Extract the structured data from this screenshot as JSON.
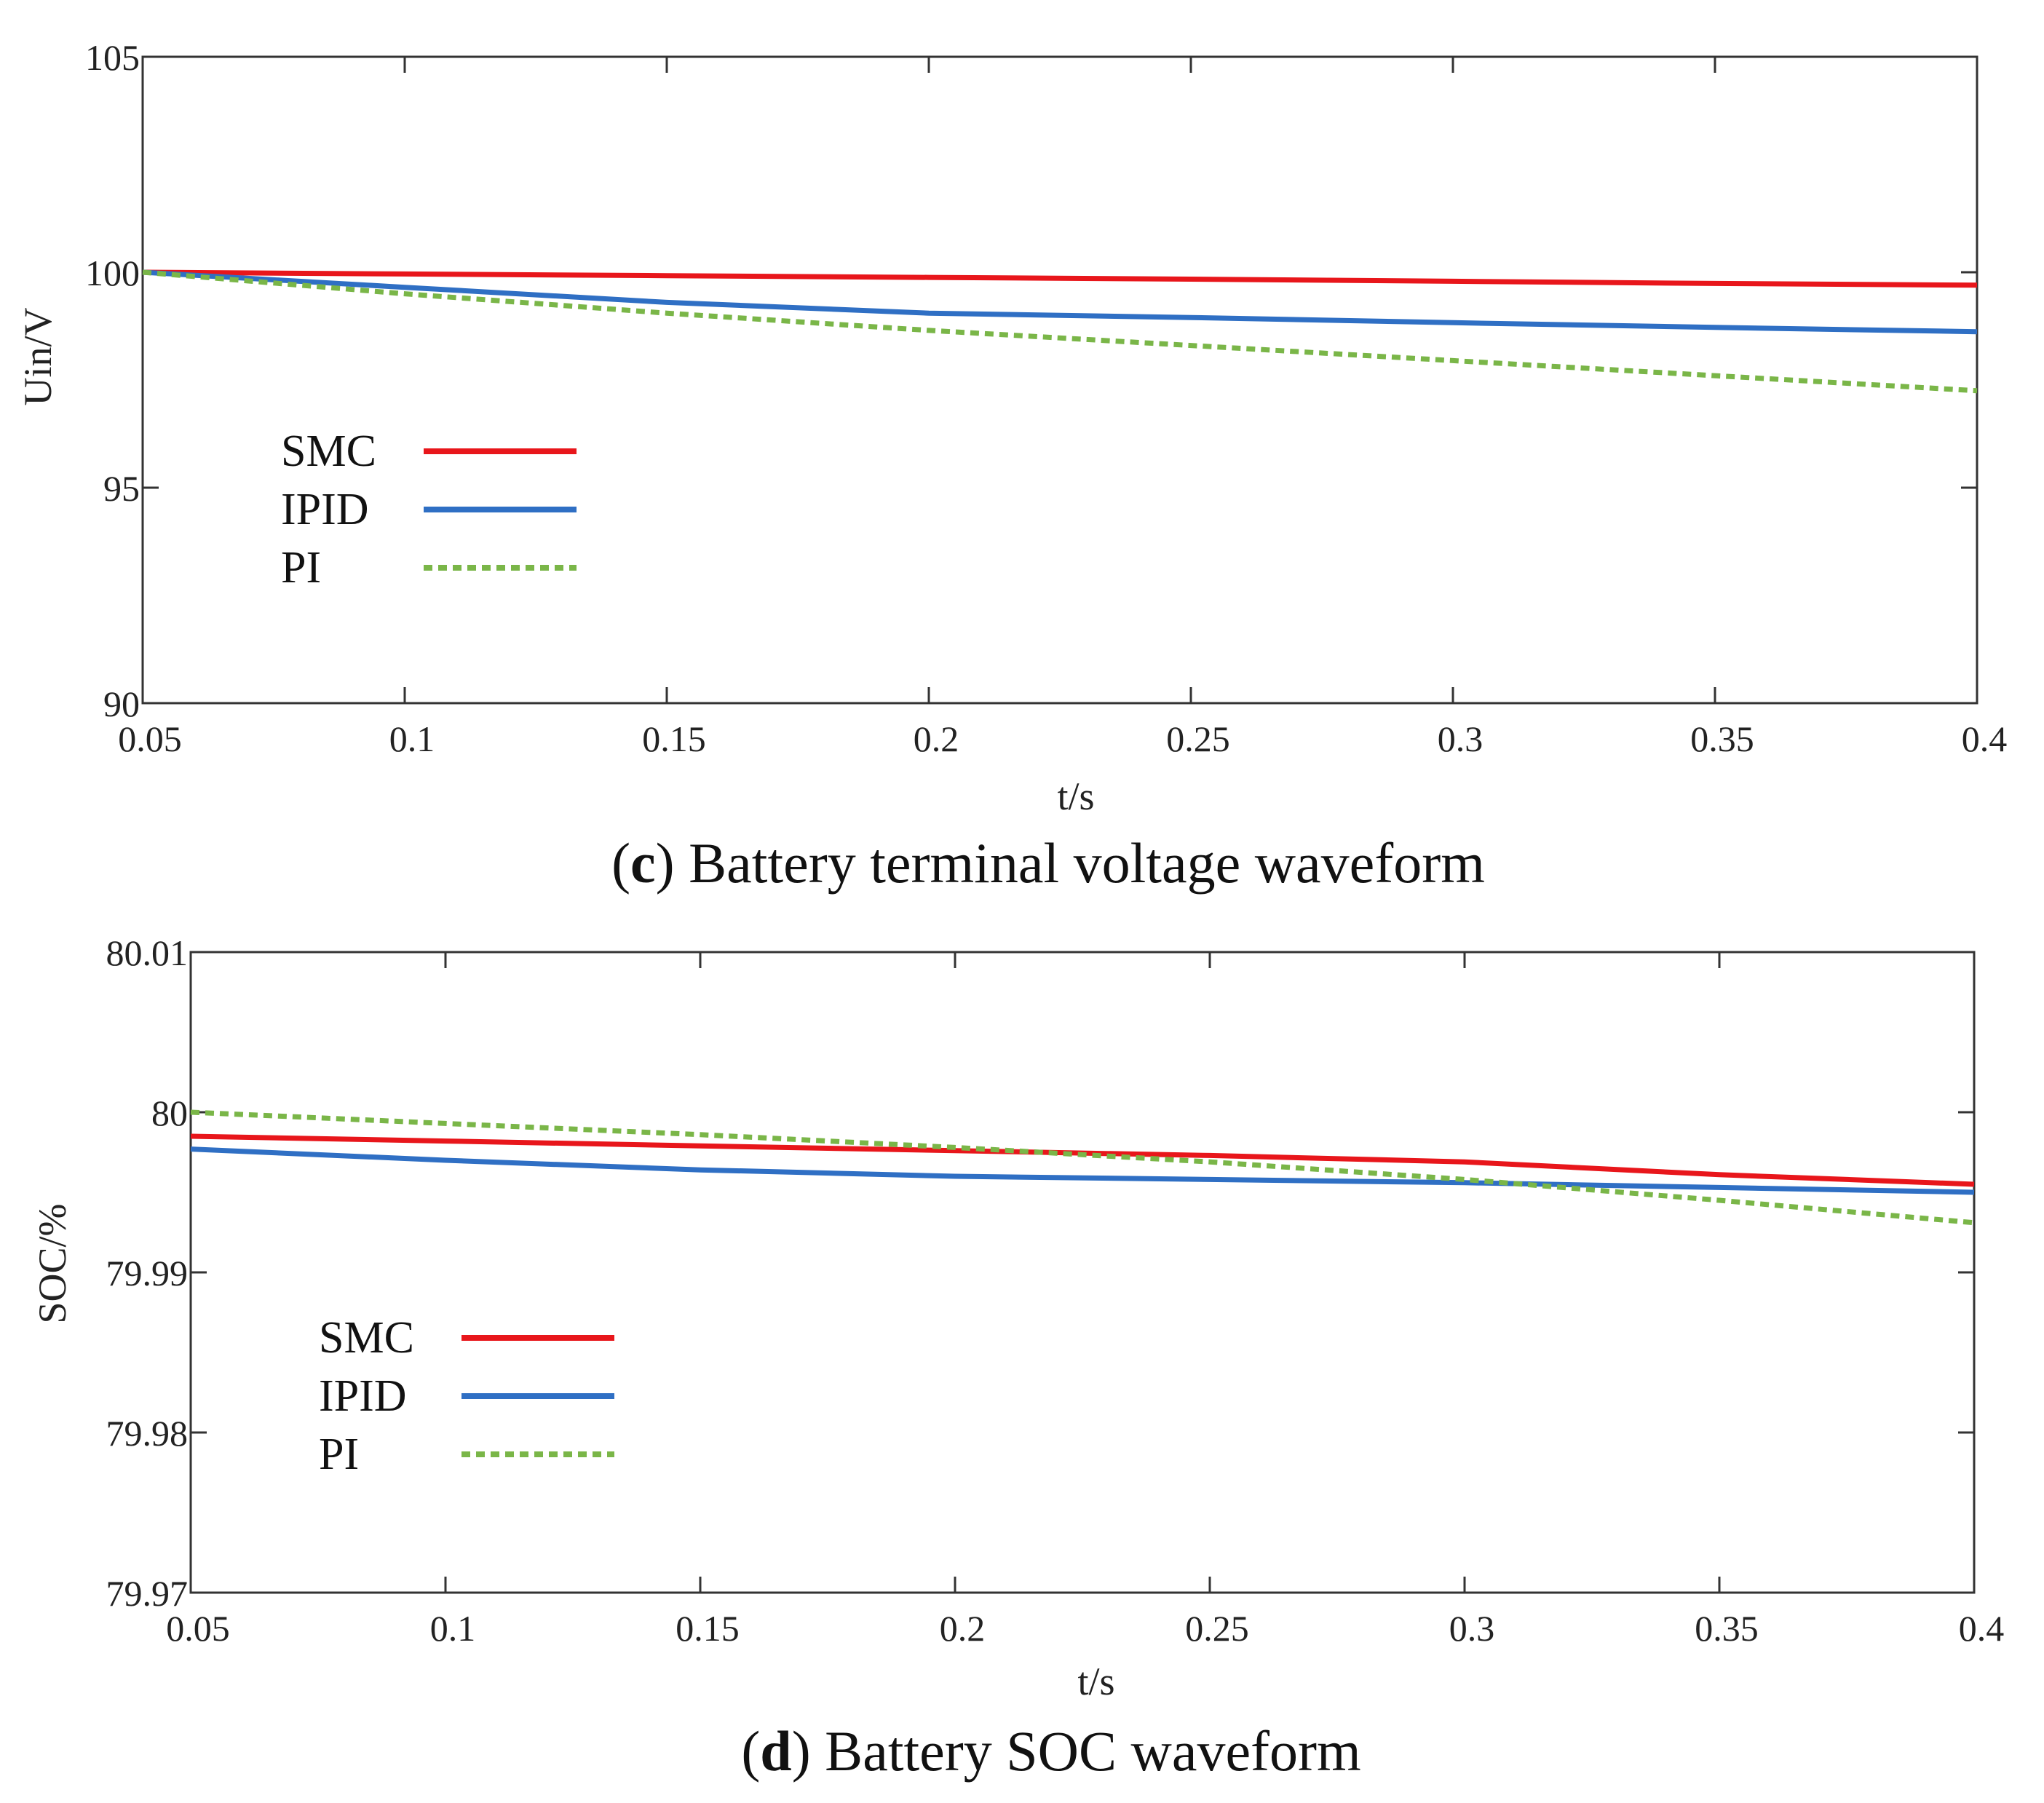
{
  "chart_data": [
    {
      "type": "line",
      "panel": "c",
      "caption_title": "Battery terminal voltage waveform",
      "xlabel": "t/s",
      "ylabel": "Uin/V",
      "xlim": [
        0.05,
        0.4
      ],
      "ylim": [
        90,
        105
      ],
      "xticks": [
        0.05,
        0.1,
        0.15,
        0.2,
        0.25,
        0.3,
        0.35,
        0.4
      ],
      "xtick_labels": [
        "0.05",
        "0.1",
        "0.15",
        "0.2",
        "0.25",
        "0.3",
        "0.35",
        "0.4"
      ],
      "yticks": [
        90,
        95,
        100,
        105
      ],
      "ytick_labels": [
        "90",
        "95",
        "100",
        "105"
      ],
      "legend_position": "center-left",
      "series": [
        {
          "name": "SMC",
          "color": "#e8161b",
          "dash": "solid",
          "x": [
            0.05,
            0.1,
            0.15,
            0.2,
            0.25,
            0.3,
            0.35,
            0.4
          ],
          "y": [
            100.0,
            99.96,
            99.92,
            99.88,
            99.84,
            99.79,
            99.74,
            99.7
          ]
        },
        {
          "name": "IPID",
          "color": "#2f6fc4",
          "dash": "solid",
          "x": [
            0.05,
            0.1,
            0.15,
            0.2,
            0.25,
            0.3,
            0.35,
            0.4
          ],
          "y": [
            100.0,
            99.65,
            99.3,
            99.05,
            98.95,
            98.83,
            98.72,
            98.62
          ]
        },
        {
          "name": "PI",
          "color": "#7ab648",
          "dash": "dotted",
          "x": [
            0.05,
            0.1,
            0.15,
            0.2,
            0.25,
            0.3,
            0.35,
            0.4
          ],
          "y": [
            100.0,
            99.5,
            99.05,
            98.65,
            98.3,
            97.95,
            97.6,
            97.25
          ]
        }
      ]
    },
    {
      "type": "line",
      "panel": "d",
      "caption_title": "Battery SOC waveform",
      "xlabel": "t/s",
      "ylabel": "SOC/%",
      "xlim": [
        0.05,
        0.4
      ],
      "ylim": [
        79.97,
        80.01
      ],
      "xticks": [
        0.05,
        0.1,
        0.15,
        0.2,
        0.25,
        0.3,
        0.35,
        0.4
      ],
      "xtick_labels": [
        "0.05",
        "0.1",
        "0.15",
        "0.2",
        "0.25",
        "0.3",
        "0.35",
        "0.4"
      ],
      "yticks": [
        79.97,
        79.98,
        79.99,
        80,
        80.01
      ],
      "ytick_labels": [
        "79.97",
        "79.98",
        "79.99",
        "80",
        "80.01"
      ],
      "legend_position": "center-left",
      "series": [
        {
          "name": "SMC",
          "color": "#e8161b",
          "dash": "solid",
          "x": [
            0.05,
            0.1,
            0.15,
            0.2,
            0.25,
            0.3,
            0.35,
            0.4
          ],
          "y": [
            79.9985,
            79.9982,
            79.9979,
            79.9976,
            79.9973,
            79.9969,
            79.9961,
            79.9955
          ]
        },
        {
          "name": "IPID",
          "color": "#2f6fc4",
          "dash": "solid",
          "x": [
            0.05,
            0.1,
            0.15,
            0.2,
            0.25,
            0.3,
            0.35,
            0.4
          ],
          "y": [
            79.9977,
            79.997,
            79.9964,
            79.996,
            79.9958,
            79.9956,
            79.9953,
            79.995
          ]
        },
        {
          "name": "PI",
          "color": "#7ab648",
          "dash": "dotted",
          "x": [
            0.05,
            0.1,
            0.15,
            0.2,
            0.25,
            0.3,
            0.35,
            0.4
          ],
          "y": [
            80.0,
            79.9993,
            79.9986,
            79.9978,
            79.9969,
            79.9958,
            79.9945,
            79.9931
          ]
        }
      ]
    }
  ]
}
